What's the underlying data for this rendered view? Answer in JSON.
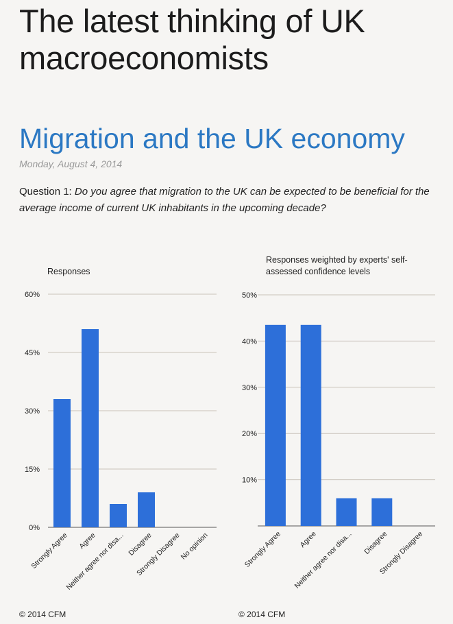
{
  "page": {
    "title": "The latest thinking of UK macroeconomists"
  },
  "post": {
    "title": "Migration and the UK economy",
    "date": "Monday, August 4, 2014",
    "question_prefix": "Question 1: ",
    "question_text": "Do you agree that migration to the UK can be expected to be beneficial for the average income of current UK inhabitants in the upcoming decade?"
  },
  "colors": {
    "bar": "#2d6fd9",
    "grid": "#c9c2ba",
    "title": "#2b78c3"
  },
  "chart_data": [
    {
      "type": "bar",
      "title": "Responses",
      "copyright": "© 2014 CFM",
      "categories": [
        "Strongly Agree",
        "Agree",
        "Neither agree nor disa...",
        "Disagree",
        "Strongly Disagree",
        "No opinion"
      ],
      "values": [
        33,
        51,
        6,
        9,
        0,
        0
      ],
      "ylim": [
        0,
        60
      ],
      "yticks": [
        0,
        15,
        30,
        45,
        60
      ],
      "ytick_labels": [
        "0%",
        "15%",
        "30%",
        "45%",
        "60%"
      ],
      "xlabel": "",
      "ylabel": ""
    },
    {
      "type": "bar",
      "title": "Responses weighted by experts' self-assessed confidence levels",
      "copyright": "© 2014 CFM",
      "categories": [
        "Strongly Agree",
        "Agree",
        "Neither agree nor disa...",
        "Disagree",
        "Strongly Disagree"
      ],
      "values": [
        43.5,
        43.5,
        6,
        6,
        0
      ],
      "ylim": [
        0,
        50
      ],
      "yticks": [
        10,
        20,
        30,
        40,
        50
      ],
      "ytick_labels": [
        "10%",
        "20%",
        "30%",
        "40%",
        "50%"
      ],
      "xlabel": "",
      "ylabel": ""
    }
  ]
}
